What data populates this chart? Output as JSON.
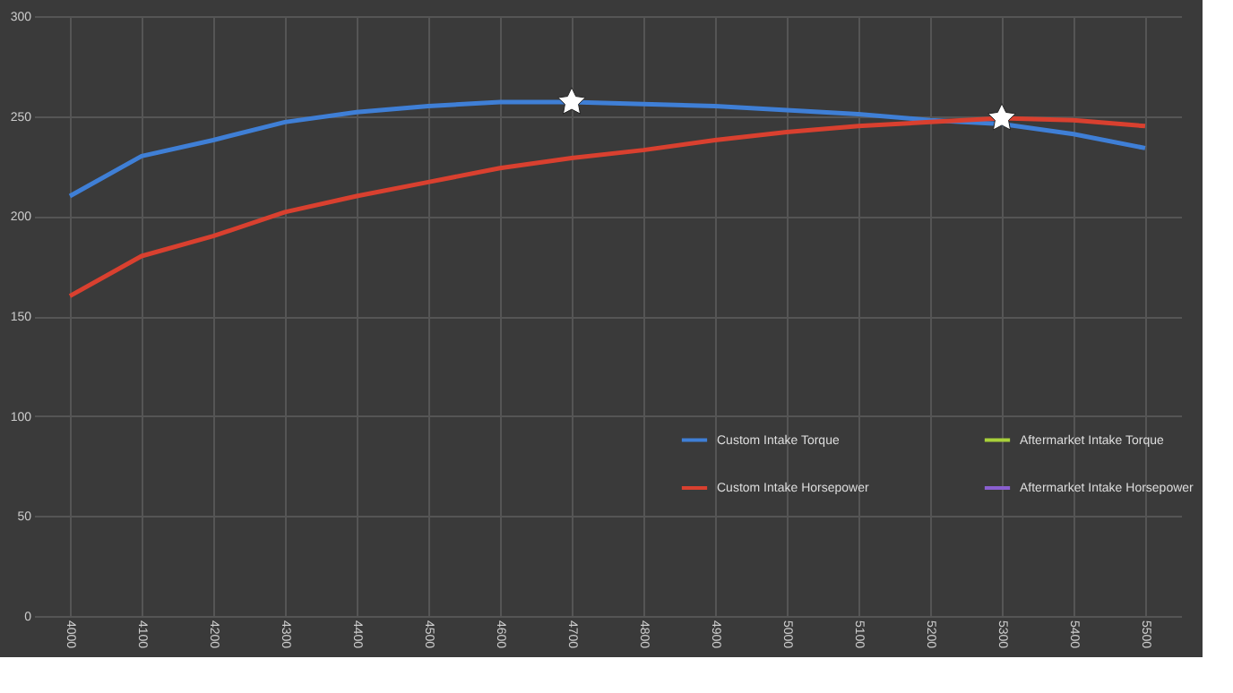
{
  "chart_data": {
    "type": "line",
    "categories": [
      "4000",
      "4100",
      "4200",
      "4300",
      "4400",
      "4500",
      "4600",
      "4700",
      "4800",
      "4900",
      "5000",
      "5100",
      "5200",
      "5300",
      "5400",
      "5500"
    ],
    "series": [
      {
        "name": "Custom Intake Torque",
        "color": "#3f7fd6",
        "values": [
          210,
          230,
          238,
          247,
          252,
          255,
          257,
          257,
          256,
          255,
          253,
          251,
          248,
          246,
          241,
          234
        ]
      },
      {
        "name": "Custom Intake Horsepower",
        "color": "#d9402f",
        "values": [
          160,
          180,
          190,
          202,
          210,
          217,
          224,
          229,
          233,
          238,
          242,
          245,
          247,
          249,
          248,
          245
        ]
      },
      {
        "name": "Aftermarket Intake Torque",
        "color": "#a8d03a",
        "values": [
          null,
          null,
          null,
          null,
          null,
          null,
          null,
          null,
          null,
          null,
          null,
          null,
          null,
          null,
          null,
          null
        ]
      },
      {
        "name": "Aftermarket Intake Horsepower",
        "color": "#8a5fd0",
        "values": [
          null,
          null,
          null,
          null,
          null,
          null,
          null,
          null,
          null,
          null,
          null,
          null,
          null,
          null,
          null,
          null
        ]
      },
      {
        "type": "scatter",
        "marker": "star",
        "color": "#ffffff",
        "values": [
          null,
          null,
          null,
          null,
          null,
          null,
          null,
          257,
          null,
          null,
          null,
          null,
          null,
          249,
          null,
          null
        ]
      }
    ],
    "ylim": [
      0,
      300
    ],
    "yticks": [
      0,
      50,
      100,
      150,
      200,
      250,
      300
    ],
    "grid": true,
    "legend": "bottom right",
    "marker": "none",
    "line_style": "solid"
  }
}
